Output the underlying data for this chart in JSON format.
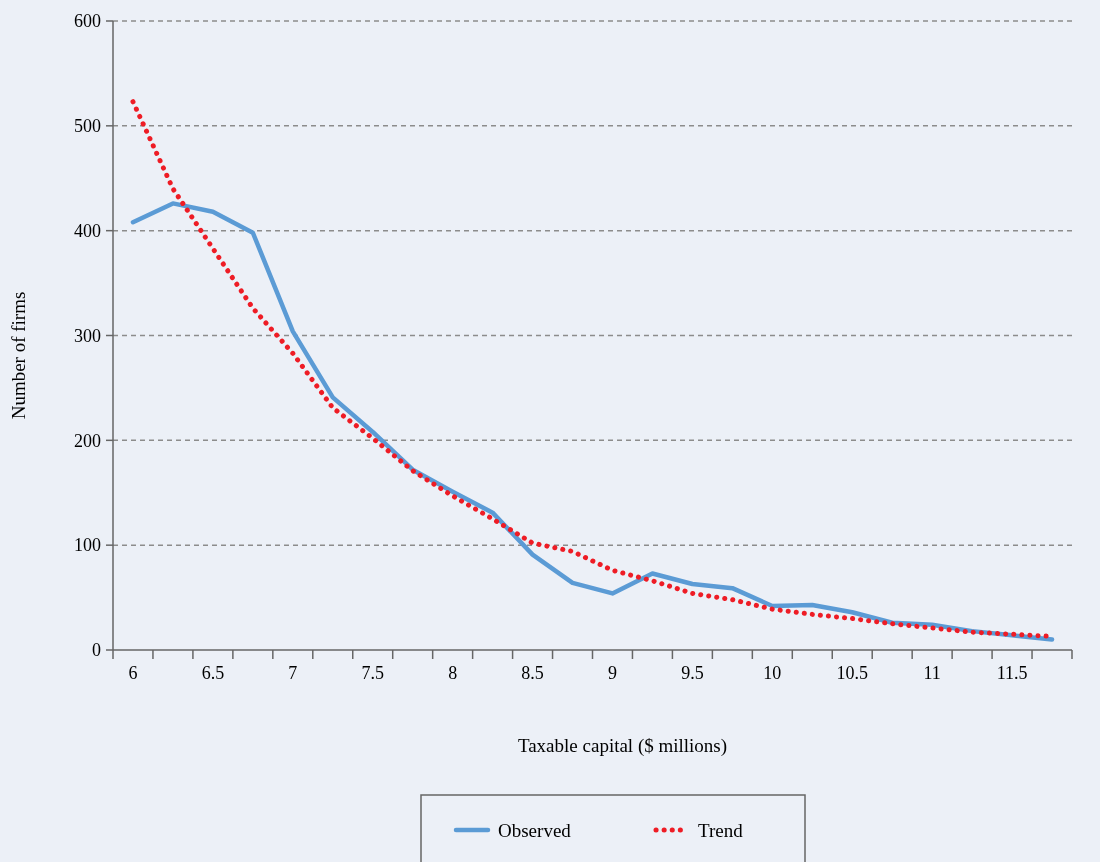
{
  "chart_data": {
    "type": "line",
    "xlabel": "Taxable capital ($ millions)",
    "ylabel": "Number of firms",
    "categories": [
      "6",
      null,
      "6.5",
      null,
      "7",
      null,
      "7.5",
      null,
      "8",
      null,
      "8.5",
      null,
      "9",
      null,
      "9.5",
      null,
      "10",
      null,
      "10.5",
      null,
      "11",
      null,
      "11.5",
      null
    ],
    "ylim": [
      0,
      600
    ],
    "yticks": [
      0,
      100,
      200,
      300,
      400,
      500,
      600
    ],
    "grid": "y",
    "legend": "bottom",
    "series": [
      {
        "name": "Observed",
        "color": "#5b9bd5",
        "line_style": "solid",
        "values": [
          408,
          426,
          418,
          398,
          304,
          241,
          208,
          172,
          151,
          131,
          91,
          64,
          54,
          73,
          63,
          59,
          42,
          43,
          36,
          26,
          24,
          18,
          14,
          10
        ]
      },
      {
        "name": "Trend",
        "color": "#ee1c25",
        "line_style": "dotted",
        "values": [
          523,
          440,
          383,
          326,
          283,
          231,
          202,
          171,
          147,
          125,
          102,
          94,
          76,
          66,
          54,
          48,
          39,
          34,
          30,
          25,
          21,
          17,
          15,
          13
        ]
      }
    ]
  }
}
